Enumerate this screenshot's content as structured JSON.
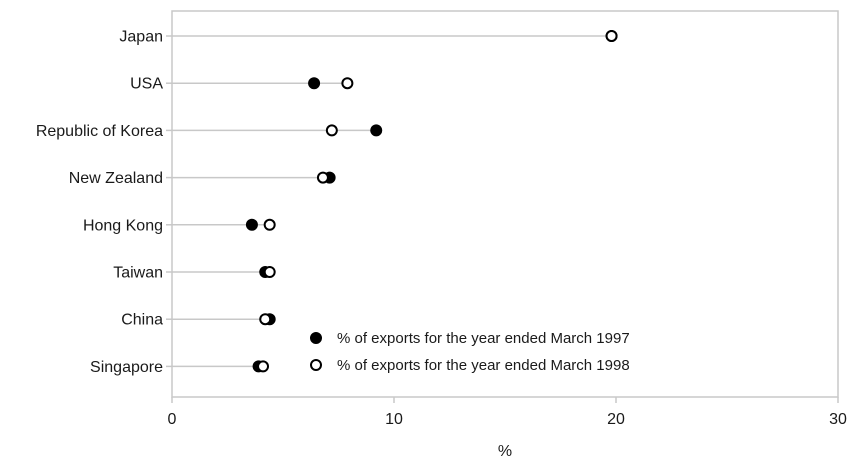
{
  "chart_data": {
    "type": "scatter",
    "subtype": "dot-plot",
    "title": "",
    "xlabel": "%",
    "ylabel": "",
    "xlim": [
      0,
      30
    ],
    "xticks": [
      0,
      10,
      20,
      30
    ],
    "categories": [
      "Japan",
      "USA",
      "Republic of Korea",
      "New Zealand",
      "Hong Kong",
      "Taiwan",
      "China",
      "Singapore"
    ],
    "series": [
      {
        "name": "% of exports for the year ended March 1997",
        "marker": "filled-circle",
        "color": "#000000",
        "values": [
          19.8,
          6.4,
          9.2,
          7.1,
          3.6,
          4.2,
          4.4,
          3.9
        ]
      },
      {
        "name": "% of exports for the year ended March 1998",
        "marker": "open-circle",
        "color": "#000000",
        "values": [
          19.8,
          7.9,
          7.2,
          6.8,
          4.4,
          4.4,
          4.2,
          4.1
        ]
      }
    ],
    "grid": false,
    "legend_position": "bottom-center"
  },
  "colors": {
    "frame": "#c8c8c8",
    "leader_line": "#c8c8c8",
    "marker": "#000000",
    "text": "#1a1a1a"
  }
}
